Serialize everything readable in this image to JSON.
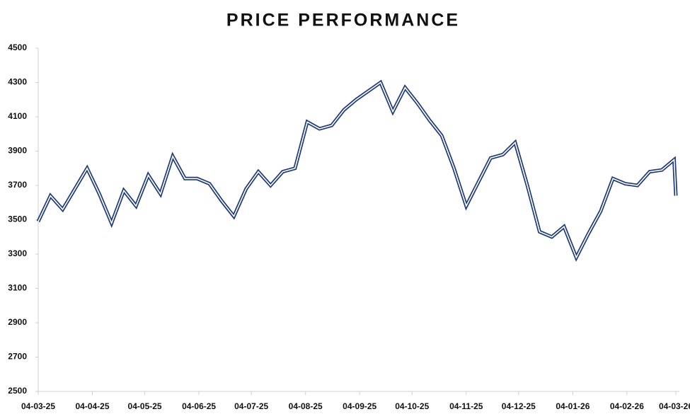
{
  "chart_data": {
    "type": "line",
    "title": "PRICE PERFORMANCE",
    "x": [
      "04-03-25",
      "11-03-25",
      "18-03-25",
      "25-03-25",
      "01-04-25",
      "08-04-25",
      "15-04-25",
      "22-04-25",
      "29-04-25",
      "06-05-25",
      "13-05-25",
      "20-05-25",
      "27-05-25",
      "03-06-25",
      "10-06-25",
      "17-06-25",
      "24-06-25",
      "01-07-25",
      "08-07-25",
      "15-07-25",
      "22-07-25",
      "29-07-25",
      "05-08-25",
      "12-08-25",
      "19-08-25",
      "26-08-25",
      "02-09-25",
      "09-09-25",
      "16-09-25",
      "23-09-25",
      "30-09-25",
      "07-10-25",
      "14-10-25",
      "21-10-25",
      "28-10-25",
      "04-11-25",
      "11-11-25",
      "18-11-25",
      "25-11-25",
      "02-12-25",
      "09-12-25",
      "16-12-25",
      "23-12-25",
      "30-12-25",
      "06-01-26",
      "13-01-26",
      "20-01-26",
      "27-01-26",
      "03-02-26",
      "10-02-26",
      "17-02-26",
      "24-02-26",
      "03-03-26",
      "04-03-26"
    ],
    "series": [
      {
        "name": "Price",
        "color": "#1f3a7a",
        "values": [
          3490,
          3640,
          3560,
          3680,
          3800,
          3650,
          3480,
          3670,
          3580,
          3760,
          3650,
          3870,
          3740,
          3740,
          3710,
          3610,
          3520,
          3680,
          3780,
          3700,
          3780,
          3800,
          4070,
          4030,
          4050,
          4140,
          4200,
          4250,
          4300,
          4130,
          4270,
          4180,
          4080,
          3990,
          3800,
          3580,
          3720,
          3860,
          3880,
          3950,
          3700,
          3430,
          3400,
          3460,
          3280,
          3420,
          3550,
          3740,
          3710,
          3700,
          3780,
          3790,
          3850,
          3640
        ]
      }
    ],
    "xlim": [
      "04-03-25",
      "04-03-26"
    ],
    "xticks": [
      "04-03-25",
      "04-04-25",
      "04-05-25",
      "04-06-25",
      "04-07-25",
      "04-08-25",
      "04-09-25",
      "04-10-25",
      "04-11-25",
      "04-12-25",
      "04-01-26",
      "04-02-26",
      "04-03-26"
    ],
    "ylim": [
      2500,
      4500
    ],
    "yticks": [
      2500,
      2700,
      2900,
      3100,
      3300,
      3500,
      3700,
      3900,
      4100,
      4300,
      4500
    ],
    "grid": false
  }
}
